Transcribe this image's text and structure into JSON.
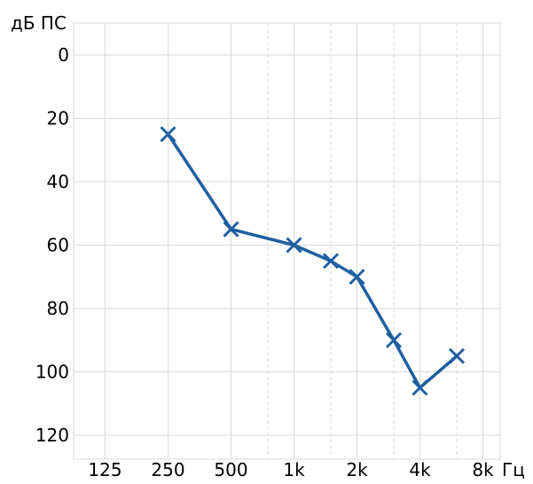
{
  "chart_data": {
    "type": "line",
    "ylabel": "дБ ПС",
    "xlabel": "Гц",
    "x_scale": "log2",
    "y_inverted": true,
    "ylim": [
      0,
      120
    ],
    "yticks": [
      0,
      20,
      40,
      60,
      80,
      100,
      120
    ],
    "xticks": [
      {
        "value": 125,
        "label": "125"
      },
      {
        "value": 250,
        "label": "250"
      },
      {
        "value": 500,
        "label": "500"
      },
      {
        "value": 1000,
        "label": "1k"
      },
      {
        "value": 2000,
        "label": "2k"
      },
      {
        "value": 4000,
        "label": "4k"
      },
      {
        "value": 8000,
        "label": "8k"
      }
    ],
    "minor_x": [
      750,
      1500,
      3000,
      6000
    ],
    "grid": true,
    "series": [
      {
        "color": "#1f5fa0",
        "marker": "x",
        "points": [
          {
            "x": 250,
            "y": 25
          },
          {
            "x": 500,
            "y": 55
          },
          {
            "x": 1000,
            "y": 60
          },
          {
            "x": 1500,
            "y": 65
          },
          {
            "x": 2000,
            "y": 70
          },
          {
            "x": 3000,
            "y": 90
          },
          {
            "x": 4000,
            "y": 105
          },
          {
            "x": 6000,
            "y": 95
          }
        ]
      }
    ]
  }
}
